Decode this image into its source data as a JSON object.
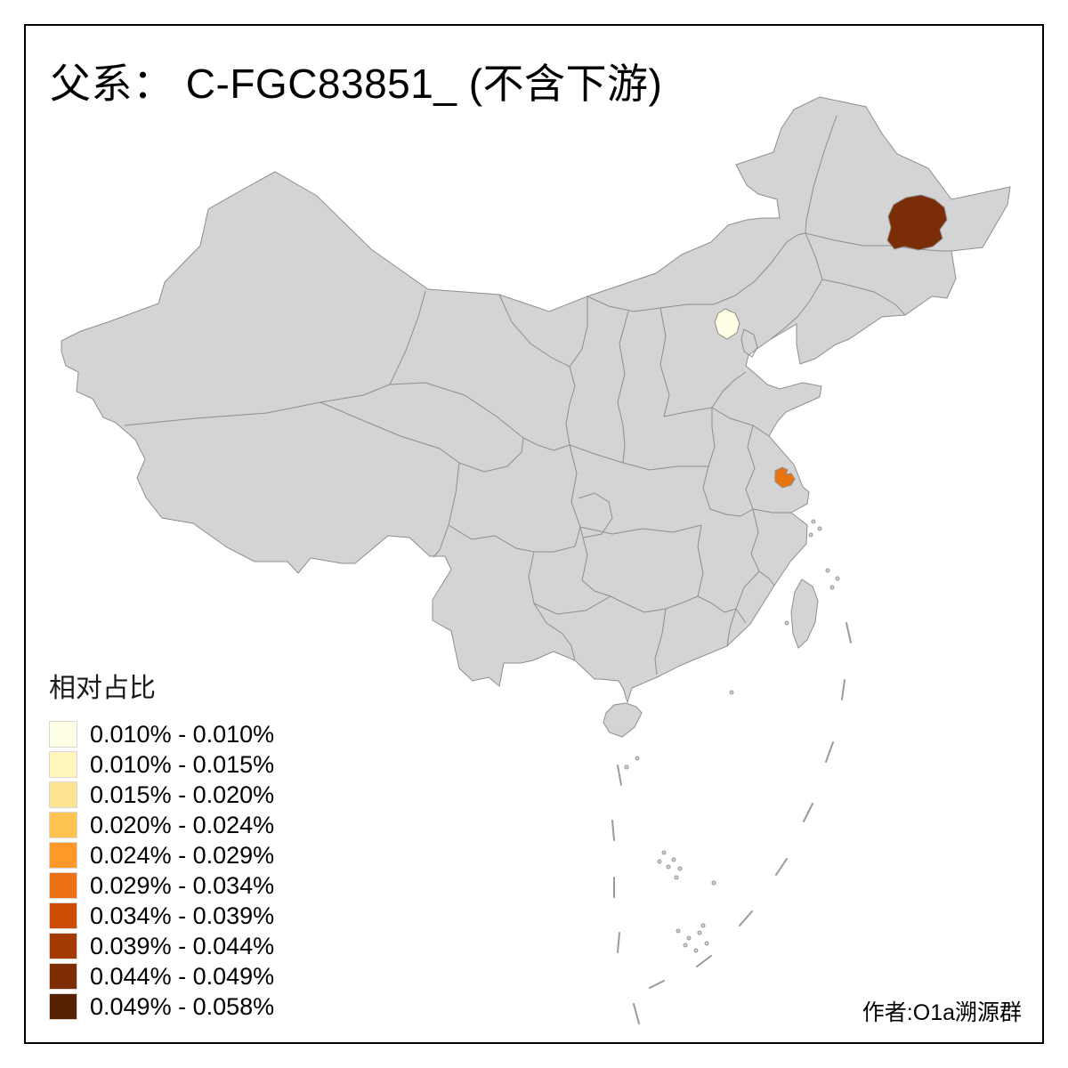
{
  "title": "父系： C-FGC83851_ (不含下游)",
  "legend": {
    "title": "相对占比",
    "items": [
      {
        "label": "0.010% - 0.010%",
        "color": "#FFFFE5"
      },
      {
        "label": "0.010% - 0.015%",
        "color": "#FFF7BC"
      },
      {
        "label": "0.015% - 0.020%",
        "color": "#FEE391"
      },
      {
        "label": "0.020% - 0.024%",
        "color": "#FEC44F"
      },
      {
        "label": "0.024% - 0.029%",
        "color": "#FE9929"
      },
      {
        "label": "0.029% - 0.034%",
        "color": "#EC7014"
      },
      {
        "label": "0.034% - 0.039%",
        "color": "#CC4C02"
      },
      {
        "label": "0.039% - 0.044%",
        "color": "#A33903"
      },
      {
        "label": "0.044% - 0.049%",
        "color": "#7E2D04"
      },
      {
        "label": "0.049% - 0.058%",
        "color": "#572104"
      }
    ]
  },
  "author": "作者:O1a溯源群",
  "map": {
    "base_fill": "#d4d4d4",
    "border_color": "#8e8e8e",
    "highlighted_regions": [
      {
        "name": "northeast-region",
        "color": "#7B2D08"
      },
      {
        "name": "beijing-region",
        "color": "#FFFFE5"
      },
      {
        "name": "yangtze-delta-region",
        "color": "#E97310"
      }
    ]
  }
}
